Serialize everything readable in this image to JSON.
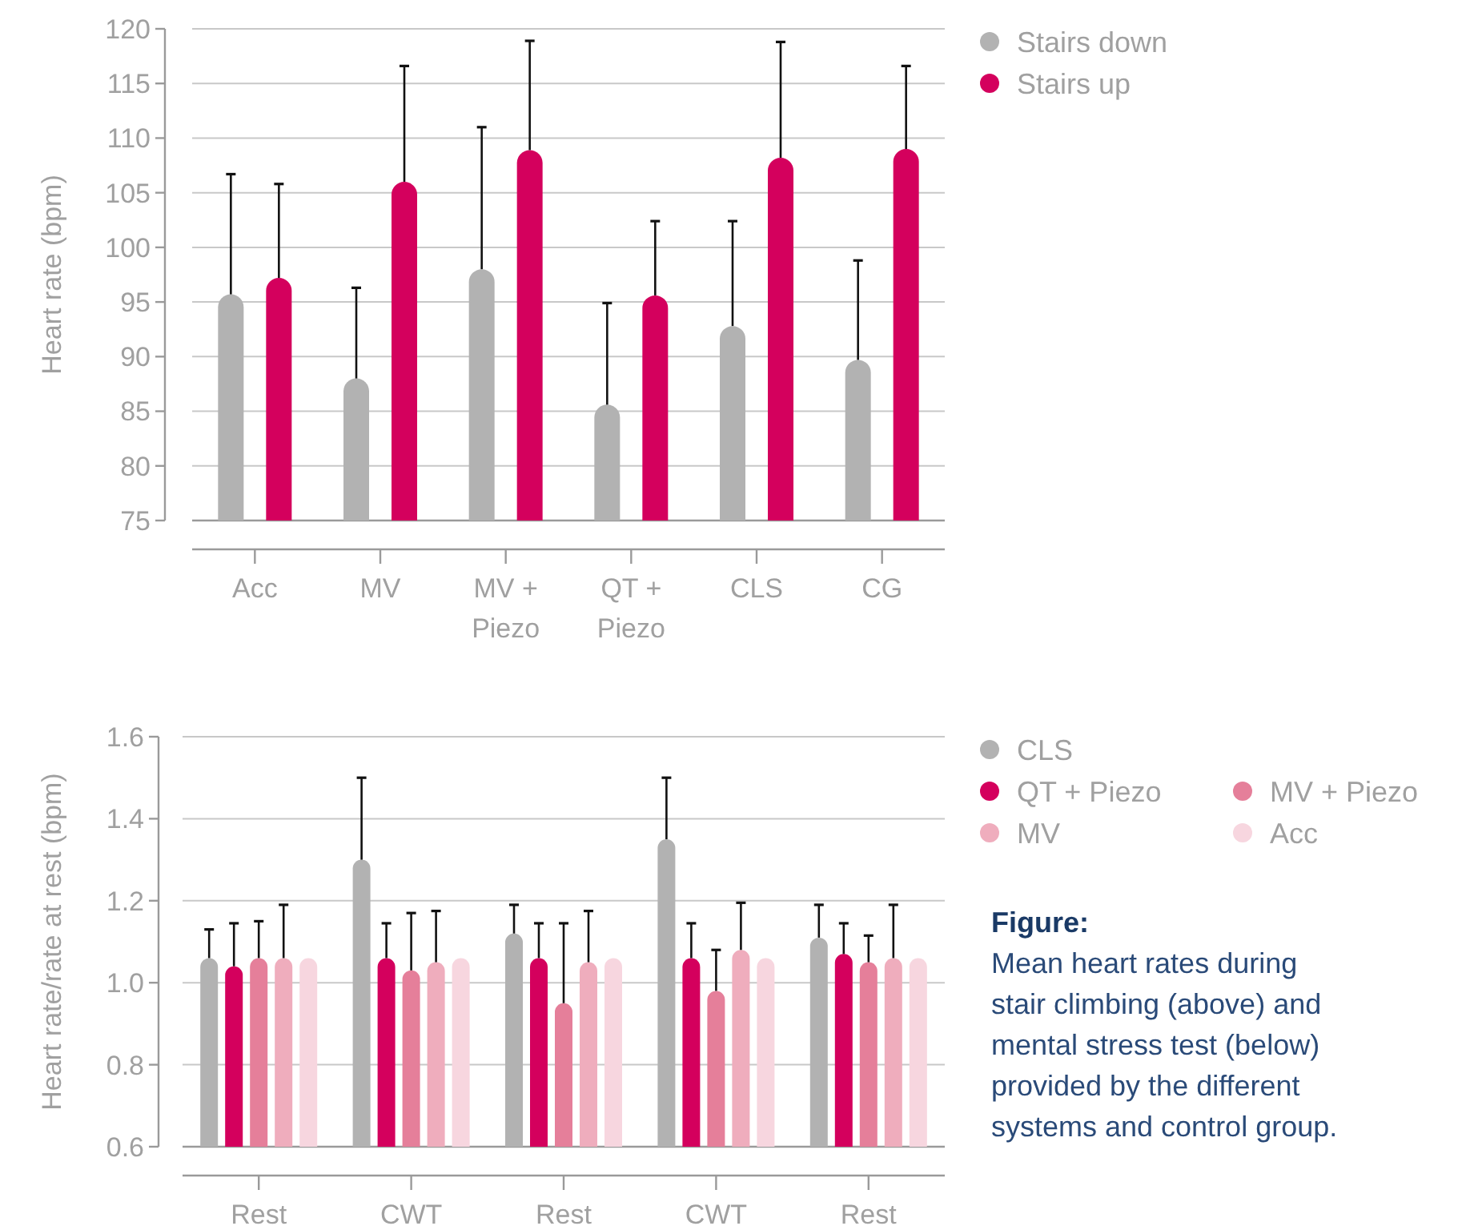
{
  "chart_data": [
    {
      "type": "bar",
      "ylabel": "Heart rate (bpm)",
      "categories": [
        "Acc",
        "MV",
        "MV + Piezo",
        "QT + Piezo",
        "CLS",
        "CG"
      ],
      "ylim": [
        75,
        120
      ],
      "yticks": [
        75,
        80,
        85,
        90,
        95,
        100,
        105,
        110,
        115,
        120
      ],
      "grid": "y",
      "legend": "top right",
      "series": [
        {
          "name": "Stairs down",
          "color": "#b2b2b2",
          "values": [
            95.7,
            88,
            98,
            85.6,
            92.8,
            89.7
          ],
          "errors": [
            [
              95.7,
              106.7
            ],
            [
              88,
              96.3
            ],
            [
              98,
              111
            ],
            [
              85.6,
              94.9
            ],
            [
              92.8,
              102.4
            ],
            [
              89.7,
              98.8
            ]
          ]
        },
        {
          "name": "Stairs up",
          "color": "#d4005d",
          "values": [
            97.2,
            106,
            108.9,
            95.6,
            108.2,
            109
          ],
          "errors": [
            [
              97.2,
              105.8
            ],
            [
              106,
              116.6
            ],
            [
              108.9,
              118.9
            ],
            [
              95.6,
              102.4
            ],
            [
              108.2,
              118.8
            ],
            [
              109,
              116.6
            ]
          ]
        }
      ]
    },
    {
      "type": "bar",
      "ylabel": "Heart rate/rate at rest (bpm)",
      "categories": [
        "Rest",
        "CWT",
        "Rest",
        "CWT",
        "Rest"
      ],
      "ylim": [
        0.6,
        1.6
      ],
      "yticks": [
        0.6,
        0.8,
        {
          "value": 1,
          "label": "1.0"
        },
        1.2,
        1.4,
        1.6
      ],
      "grid": "y",
      "legend": "right",
      "annotations": [
        "Figure:",
        "Mean heart rates during stair climbing (above) and mental stress test (below) provided by the different systems and control group."
      ],
      "series": [
        {
          "name": "CLS",
          "color": "#b2b2b2",
          "values": [
            1.06,
            1.3,
            1.12,
            1.35,
            1.11
          ],
          "errors": [
            [
              1.06,
              1.13
            ],
            [
              1.3,
              1.5
            ],
            [
              1.12,
              1.19
            ],
            [
              1.35,
              1.5
            ],
            [
              1.11,
              1.19
            ]
          ]
        },
        {
          "name": "QT + Piezo",
          "color": "#d4005d",
          "values": [
            1.04,
            1.06,
            1.06,
            1.06,
            1.07
          ],
          "errors": [
            [
              1.04,
              1.145
            ],
            [
              1.06,
              1.145
            ],
            [
              1.06,
              1.145
            ],
            [
              1.06,
              1.145
            ],
            [
              1.07,
              1.145
            ]
          ]
        },
        {
          "name": "MV + Piezo",
          "color": "#e57f9a",
          "values": [
            1.06,
            1.03,
            0.95,
            0.98,
            1.05
          ],
          "errors": [
            [
              1.06,
              1.15
            ],
            [
              1.03,
              1.17
            ],
            [
              0.95,
              1.145
            ],
            [
              0.98,
              1.08
            ],
            [
              1.05,
              1.115
            ]
          ]
        },
        {
          "name": "MV",
          "color": "#efadbd",
          "values": [
            1.06,
            1.05,
            1.05,
            1.08,
            1.06
          ],
          "errors": [
            [
              1.06,
              1.19
            ],
            [
              1.05,
              1.175
            ],
            [
              1.05,
              1.175
            ],
            [
              1.08,
              1.195
            ],
            [
              1.06,
              1.19
            ]
          ]
        },
        {
          "name": "Acc",
          "color": "#f7d6df",
          "values": [
            1.06,
            1.06,
            1.06,
            1.06,
            1.06
          ]
        }
      ]
    }
  ]
}
